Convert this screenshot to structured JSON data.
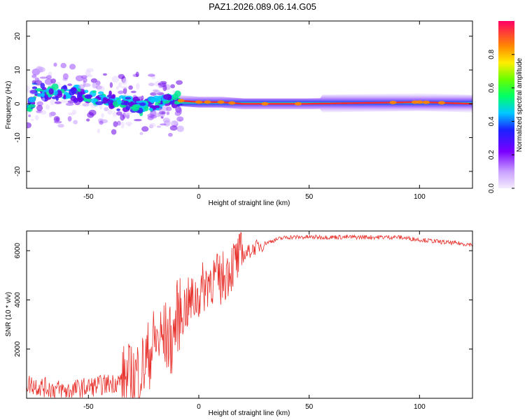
{
  "title": "PAZ1.2026.089.06.14.G05",
  "colors": {
    "snr_line": "#e8302b",
    "ridge": "#ff2a2a",
    "axis": "#000000"
  },
  "chart_data": [
    {
      "type": "heatmap",
      "title": "PAZ1.2026.089.06.14.G05",
      "xlabel": "Height of straight line (km)",
      "ylabel": "Frequency (Hz)",
      "xlim": [
        -78,
        124
      ],
      "ylim": [
        -25,
        24.5
      ],
      "xticks": [
        -50,
        0,
        50,
        100
      ],
      "yticks": [
        -20,
        -10,
        0,
        10,
        20
      ],
      "colorbar": {
        "label": "Normalized spectral amplitude",
        "range": [
          0,
          1
        ],
        "ticks": [
          "0.0",
          "0.2",
          "0.4",
          "0.6",
          "0.8"
        ],
        "colormap": "rainbow (violet to red)"
      },
      "description_series": [
        {
          "name": "ridge-center-frequency",
          "x": [
            -75,
            -65,
            -55,
            -45,
            -35,
            -25,
            -15,
            -10,
            0,
            10,
            20,
            50,
            100,
            124
          ],
          "y": [
            4,
            3,
            3,
            2,
            0,
            -1,
            1,
            1,
            0.5,
            0.5,
            0,
            0,
            0.5,
            0
          ]
        }
      ]
    },
    {
      "type": "line",
      "xlabel": "Height of straight line (km)",
      "ylabel": "SNR (10 * v/v)",
      "xlim": [
        -78,
        124
      ],
      "ylim": [
        0,
        6800
      ],
      "xticks": [
        -50,
        0,
        50,
        100
      ],
      "yticks": [
        2000,
        4000,
        6000
      ],
      "series": [
        {
          "name": "SNR",
          "x": [
            -78,
            -70,
            -60,
            -50,
            -40,
            -30,
            -25,
            -20,
            -15,
            -12,
            -10,
            -5,
            0,
            5,
            10,
            15,
            20,
            25,
            30,
            35,
            40,
            50,
            60,
            70,
            80,
            90,
            100,
            110,
            124
          ],
          "y": [
            600,
            450,
            300,
            450,
            600,
            800,
            1300,
            2300,
            2500,
            2300,
            3300,
            3800,
            4200,
            4900,
            4800,
            5400,
            5800,
            6100,
            6300,
            6450,
            6550,
            6550,
            6550,
            6550,
            6550,
            6550,
            6450,
            6350,
            6250
          ]
        }
      ]
    }
  ]
}
